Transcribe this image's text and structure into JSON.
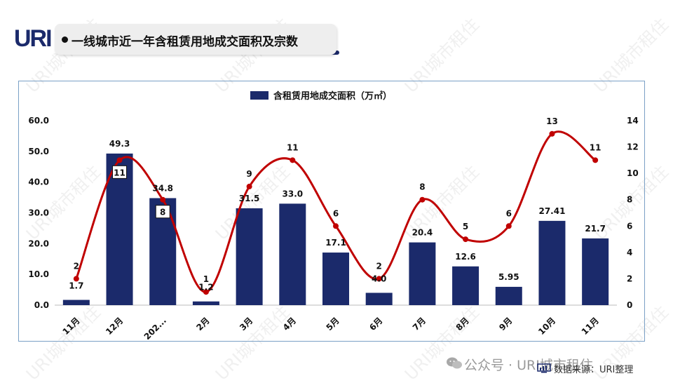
{
  "header": {
    "logo": "URI",
    "title": "一线城市近一年含租赁用地成交面积及宗数"
  },
  "watermark": "URI城市租住",
  "footer": {
    "wechat_text": "公众号 · URI城市租住",
    "source": "数据来源：URI整理"
  },
  "colors": {
    "bar": "#1b2a6b",
    "line": "#c00000",
    "frame": "#7aa0c6"
  },
  "icons": {
    "wechat": "wechat-icon",
    "source": "chart-monitor-icon"
  },
  "chart_data": {
    "type": "bar",
    "title": "",
    "legend": {
      "entries": [
        "含租赁用地成交面积（万㎡）"
      ],
      "placement": "top"
    },
    "categories": [
      "11月",
      "12月",
      "202...",
      "2月",
      "3月",
      "4月",
      "5月",
      "6月",
      "7月",
      "8月",
      "9月",
      "10月",
      "11月"
    ],
    "series": [
      {
        "name": "含租赁用地成交面积（万㎡）",
        "type": "bar",
        "axis": "left",
        "values": [
          1.7,
          49.3,
          34.8,
          1.2,
          31.5,
          33.0,
          17.1,
          4.0,
          20.4,
          12.6,
          5.95,
          27.41,
          21.7
        ],
        "labels": [
          "1.7",
          "49.3",
          "34.8",
          "1.2",
          "31.5",
          "33.0",
          "17.1",
          "4.0",
          "20.4",
          "12.6",
          "5.95",
          "27.41",
          "21.7"
        ]
      },
      {
        "type": "line",
        "axis": "right",
        "values": [
          2,
          11,
          8,
          1,
          9,
          11,
          6,
          2,
          8,
          5,
          6,
          13,
          11
        ],
        "labels": [
          "2",
          "11",
          "8",
          "1",
          "9",
          "11",
          "6",
          "2",
          "8",
          "5",
          "6",
          "13",
          "11"
        ],
        "boxed_labels": [
          1,
          2
        ]
      }
    ],
    "y_left": {
      "ylim": [
        0,
        60
      ],
      "ticks": [
        "0.0",
        "10.0",
        "20.0",
        "30.0",
        "40.0",
        "50.0",
        "60.0"
      ]
    },
    "y_right": {
      "ylim": [
        0,
        14
      ],
      "ticks": [
        "0",
        "2",
        "4",
        "6",
        "8",
        "10",
        "12",
        "14"
      ]
    },
    "grid": false
  }
}
